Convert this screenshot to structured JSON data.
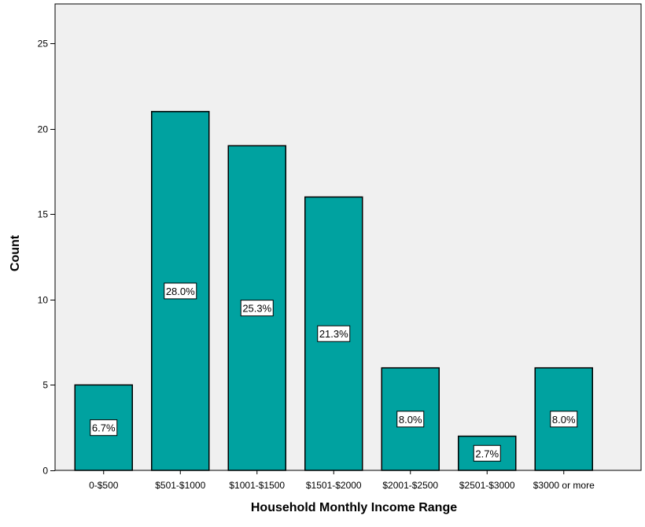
{
  "chart_data": {
    "type": "bar",
    "xlabel": "Household Monthly Income Range",
    "ylabel": "Count",
    "categories": [
      "0-$500",
      "$501-$1000",
      "$1001-$1500",
      "$1501-$2000",
      "$2001-$2500",
      "$2501-$3000",
      "$3000 or more"
    ],
    "values": [
      5,
      21,
      19,
      16,
      6,
      2,
      6
    ],
    "data_labels": [
      "6.7%",
      "28.0%",
      "25.3%",
      "21.3%",
      "8.0%",
      "2.7%",
      "8.0%"
    ],
    "ylim": [
      0,
      27.3
    ],
    "yticks": [
      0,
      5,
      10,
      15,
      20,
      25
    ],
    "grid": false,
    "colors": {
      "bar_fill": "#00A2A0",
      "bar_stroke": "#000000",
      "plot_background": "#F0F0F0",
      "label_background": "#FFFFFF"
    }
  }
}
